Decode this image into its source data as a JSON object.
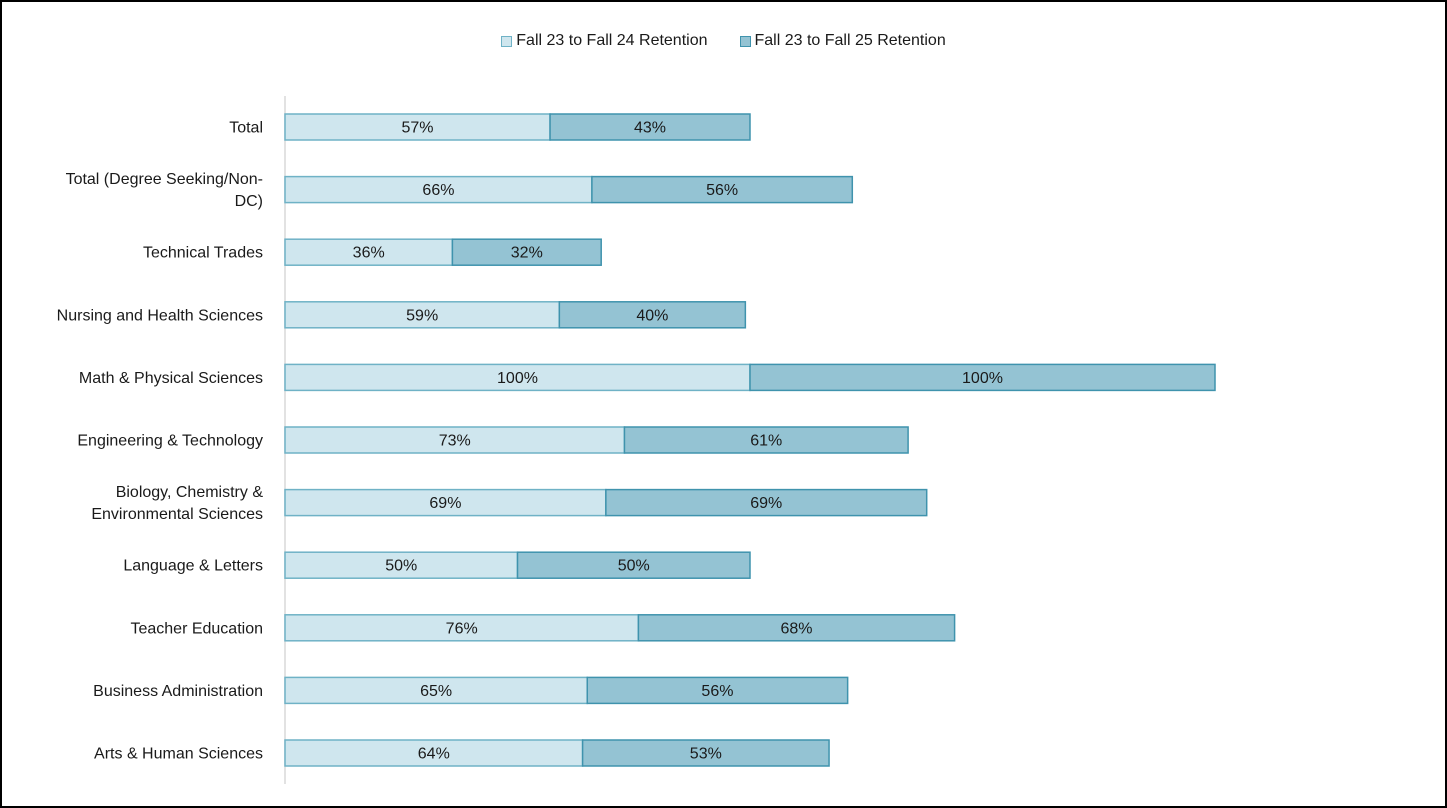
{
  "chart_data": {
    "type": "bar",
    "orientation": "horizontal",
    "stacked": true,
    "categories": [
      "Total",
      "Total (Degree Seeking/Non-DC)",
      "Technical Trades",
      "Nursing and Health Sciences",
      "Math & Physical Sciences",
      "Engineering & Technology",
      "Biology, Chemistry & Environmental Sciences",
      "Language & Letters",
      "Teacher Education",
      "Business Administration",
      "Arts & Human Sciences"
    ],
    "category_lines": [
      [
        "Total"
      ],
      [
        "Total (Degree Seeking/Non-",
        "DC)"
      ],
      [
        "Technical Trades"
      ],
      [
        "Nursing and Health Sciences"
      ],
      [
        "Math & Physical Sciences"
      ],
      [
        "Engineering & Technology"
      ],
      [
        "Biology, Chemistry &",
        "Environmental Sciences"
      ],
      [
        "Language & Letters"
      ],
      [
        "Teacher Education"
      ],
      [
        "Business Administration"
      ],
      [
        "Arts & Human Sciences"
      ]
    ],
    "series": [
      {
        "name": "Fall 23 to Fall 24 Retention",
        "color": "#cfe6ee",
        "border": "#6fb2c6",
        "values": [
          57,
          66,
          36,
          59,
          100,
          73,
          69,
          50,
          76,
          65,
          64
        ],
        "labels": [
          "57%",
          "66%",
          "36%",
          "59%",
          "100%",
          "73%",
          "69%",
          "50%",
          "76%",
          "65%",
          "64%"
        ]
      },
      {
        "name": "Fall 23 to Fall 25 Retention",
        "color": "#94c3d3",
        "border": "#3f93ad",
        "values": [
          43,
          56,
          32,
          40,
          100,
          61,
          69,
          50,
          68,
          56,
          53
        ],
        "labels": [
          "43%",
          "56%",
          "32%",
          "40%",
          "100%",
          "61%",
          "69%",
          "50%",
          "68%",
          "56%",
          "53%"
        ]
      }
    ],
    "xlim": [
      0,
      200
    ],
    "axis_line_color": "#d9d9d9",
    "grid": false,
    "legend_position": "top-center",
    "title": "",
    "xlabel": "",
    "ylabel": ""
  }
}
